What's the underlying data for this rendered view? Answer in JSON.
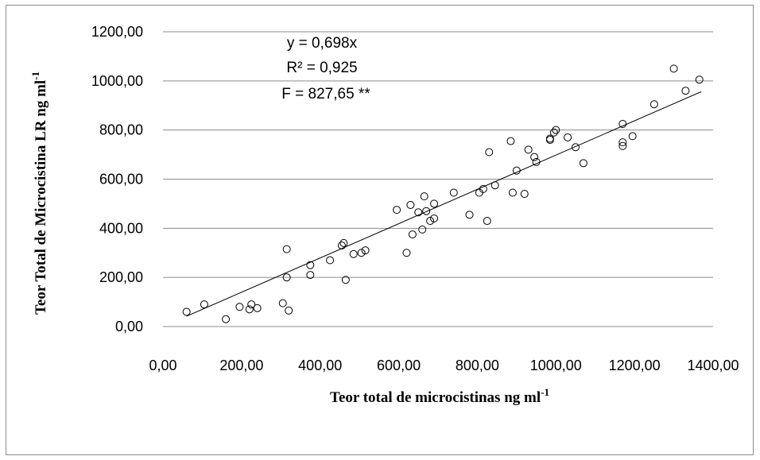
{
  "chart_data": {
    "type": "scatter",
    "xlabel": "Teor total de microcistinas  ng ml",
    "xlabel_sup": "-1",
    "ylabel": "Teor Total de Microcistina LR ng ml",
    "ylabel_sup": "-1",
    "xlim": [
      0,
      1400
    ],
    "ylim": [
      0,
      1200
    ],
    "x_ticks": [
      0,
      200,
      400,
      600,
      800,
      1000,
      1200,
      1400
    ],
    "x_tick_labels": [
      "0,00",
      "200,00",
      "400,00",
      "600,00",
      "800,00",
      "1000,00",
      "1200,00",
      "1400,00"
    ],
    "y_ticks": [
      0,
      200,
      400,
      600,
      800,
      1000,
      1200
    ],
    "y_tick_labels": [
      "0,00",
      "200,00",
      "400,00",
      "600,00",
      "800,00",
      "1000,00",
      "1200,00"
    ],
    "grid": "horizontal",
    "legend": "none",
    "annotations": [
      "y = 0,698x",
      "R² = 0,925",
      "F = 827,65 **"
    ],
    "trendline": {
      "slope": 0.698,
      "x_range": [
        60,
        1370
      ]
    },
    "colors": {
      "marker": "#000000",
      "line": "#000000",
      "grid": "#8c8c8c"
    },
    "points": [
      [
        60,
        60
      ],
      [
        105,
        90
      ],
      [
        160,
        30
      ],
      [
        195,
        80
      ],
      [
        220,
        70
      ],
      [
        225,
        90
      ],
      [
        240,
        75
      ],
      [
        305,
        95
      ],
      [
        315,
        315
      ],
      [
        315,
        200
      ],
      [
        320,
        65
      ],
      [
        375,
        250
      ],
      [
        375,
        210
      ],
      [
        425,
        270
      ],
      [
        455,
        330
      ],
      [
        460,
        340
      ],
      [
        465,
        190
      ],
      [
        485,
        295
      ],
      [
        505,
        300
      ],
      [
        515,
        310
      ],
      [
        595,
        475
      ],
      [
        620,
        300
      ],
      [
        630,
        495
      ],
      [
        635,
        375
      ],
      [
        650,
        465
      ],
      [
        660,
        395
      ],
      [
        665,
        530
      ],
      [
        670,
        470
      ],
      [
        680,
        430
      ],
      [
        690,
        500
      ],
      [
        690,
        440
      ],
      [
        740,
        545
      ],
      [
        780,
        455
      ],
      [
        805,
        545
      ],
      [
        815,
        560
      ],
      [
        825,
        430
      ],
      [
        830,
        710
      ],
      [
        845,
        575
      ],
      [
        885,
        755
      ],
      [
        890,
        545
      ],
      [
        900,
        635
      ],
      [
        920,
        540
      ],
      [
        930,
        720
      ],
      [
        945,
        690
      ],
      [
        950,
        670
      ],
      [
        985,
        760
      ],
      [
        985,
        765
      ],
      [
        995,
        790
      ],
      [
        1000,
        800
      ],
      [
        1030,
        770
      ],
      [
        1050,
        730
      ],
      [
        1070,
        665
      ],
      [
        1170,
        825
      ],
      [
        1170,
        750
      ],
      [
        1170,
        735
      ],
      [
        1195,
        775
      ],
      [
        1250,
        905
      ],
      [
        1300,
        1050
      ],
      [
        1330,
        960
      ],
      [
        1365,
        1005
      ]
    ]
  }
}
